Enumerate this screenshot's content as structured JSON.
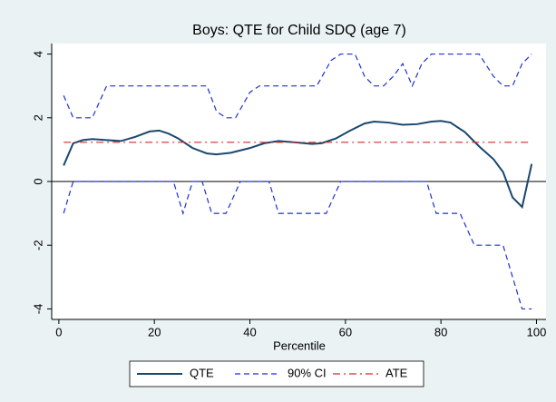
{
  "chart_data": {
    "type": "line",
    "title": "Boys: QTE for Child SDQ (age 7)",
    "x_label": "Percentile",
    "xlim": [
      -1.5,
      102
    ],
    "xticks": [
      0,
      20,
      40,
      60,
      80,
      100
    ],
    "ylim": [
      -4.33,
      4.33
    ],
    "yticks": [
      -4,
      -2,
      0,
      2,
      4
    ],
    "yline": 0,
    "legend": "bottom",
    "series": [
      {
        "name": "QTE",
        "color": "#1a476f",
        "style": "solid",
        "x": [
          1,
          3,
          5,
          7,
          10,
          13,
          16,
          19,
          21,
          23,
          25,
          28,
          31,
          33,
          36,
          40,
          43,
          46,
          50,
          53,
          55,
          58,
          61,
          64,
          66,
          69,
          72,
          75,
          78,
          80,
          82,
          85,
          88,
          91,
          93,
          95,
          97,
          99
        ],
        "values": [
          0.5,
          1.2,
          1.3,
          1.33,
          1.3,
          1.27,
          1.4,
          1.57,
          1.6,
          1.5,
          1.35,
          1.05,
          0.88,
          0.85,
          0.9,
          1.05,
          1.2,
          1.27,
          1.22,
          1.18,
          1.2,
          1.35,
          1.6,
          1.82,
          1.88,
          1.85,
          1.78,
          1.8,
          1.88,
          1.9,
          1.85,
          1.55,
          1.1,
          0.7,
          0.3,
          -0.5,
          -0.8,
          0.55
        ]
      },
      {
        "name": "90% CI",
        "color": "#1f2fd6",
        "style": "dashed",
        "x": [
          1,
          3,
          7,
          10,
          31,
          33,
          35,
          37,
          40,
          42,
          54,
          57,
          59,
          62,
          64,
          66,
          68,
          70,
          72,
          74,
          76,
          78,
          88,
          91,
          93,
          95,
          97,
          99
        ],
        "values": [
          2.7,
          2.0,
          2.0,
          3.0,
          3.0,
          2.2,
          2.0,
          2.0,
          2.8,
          3.0,
          3.0,
          3.8,
          4.0,
          4.0,
          3.3,
          3.0,
          3.0,
          3.3,
          3.7,
          3.0,
          3.7,
          4.0,
          4.0,
          3.3,
          3.0,
          3.0,
          3.7,
          4.0
        ]
      },
      {
        "name": "90% CI",
        "color": "#1f2fd6",
        "style": "dashed",
        "in_legend": false,
        "x": [
          1,
          3,
          24,
          26,
          28,
          30,
          32,
          35,
          38,
          44,
          46,
          56,
          59,
          77,
          79,
          84,
          87,
          93,
          95,
          97,
          99
        ],
        "values": [
          -1.0,
          0,
          0,
          -1.0,
          0,
          0,
          -1.0,
          -1.0,
          0,
          0,
          -1.0,
          -1.0,
          0,
          0,
          -1.0,
          -1.0,
          -2.0,
          -2.0,
          -3.0,
          -4.0,
          -4.0
        ]
      },
      {
        "name": "ATE",
        "color": "#d62a2a",
        "style": "dashdot",
        "x": [
          1,
          99
        ],
        "values": [
          1.23,
          1.23
        ]
      }
    ]
  }
}
